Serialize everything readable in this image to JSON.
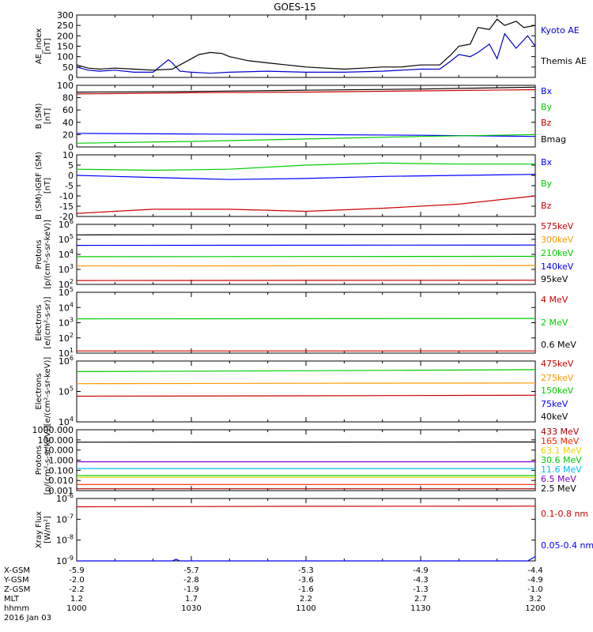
{
  "title": "GOES-15",
  "footer": {
    "row_labels": [
      "X-GSM",
      "Y-GSM",
      "Z-GSM",
      "MLT",
      "hhmm",
      "2016 Jan 03"
    ],
    "columns": [
      {
        "x_gsm": "-5.9",
        "y_gsm": "-2.0",
        "z_gsm": "-2.2",
        "mlt": "1.2",
        "hhmm": "1000"
      },
      {
        "x_gsm": "-5.7",
        "y_gsm": "-2.8",
        "z_gsm": "-1.9",
        "mlt": "1.7",
        "hhmm": "1030"
      },
      {
        "x_gsm": "-5.3",
        "y_gsm": "-3.6",
        "z_gsm": "-1.6",
        "mlt": "2.2",
        "hhmm": "1100"
      },
      {
        "x_gsm": "-4.9",
        "y_gsm": "-4.3",
        "z_gsm": "-1.3",
        "mlt": "2.7",
        "hhmm": "1130"
      },
      {
        "x_gsm": "-4.4",
        "y_gsm": "-4.9",
        "z_gsm": "-1.0",
        "mlt": "3.2",
        "hhmm": "1200"
      }
    ]
  },
  "colors": {
    "black": "#000000",
    "blue": "#0000ff",
    "green": "#00cc00",
    "red": "#cc0000",
    "orange": "#ff9900",
    "yellow": "#e6d600",
    "cyan": "#00bbee",
    "purple": "#7700cc",
    "darkred": "#aa0000",
    "brightred": "#ff2200",
    "magenta": "#dd00dd"
  },
  "chart_data": [
    {
      "type": "line",
      "ylabel": "AE_index\n[nT]",
      "scale": "linear",
      "ylim": [
        0,
        300
      ],
      "yticks": [
        "0",
        "50",
        "100",
        "150",
        "200",
        "250",
        "300"
      ],
      "x_time_range": [
        "1000",
        "1200"
      ],
      "series": [
        {
          "name": "Kyoto AE",
          "color": "#0000cc",
          "x": [
            0,
            3,
            6,
            10,
            15,
            20,
            24,
            25,
            27,
            30,
            35,
            40,
            50,
            60,
            70,
            80,
            90,
            95,
            98,
            100,
            103,
            105,
            108,
            110,
            112,
            115,
            118,
            120
          ],
          "values": [
            50,
            35,
            30,
            35,
            25,
            25,
            85,
            70,
            30,
            25,
            20,
            25,
            30,
            25,
            25,
            30,
            40,
            40,
            80,
            110,
            100,
            120,
            160,
            90,
            210,
            140,
            200,
            150
          ]
        },
        {
          "name": "Themis AE",
          "color": "#000000",
          "x": [
            0,
            3,
            6,
            10,
            15,
            20,
            25,
            30,
            32,
            35,
            38,
            40,
            45,
            50,
            55,
            60,
            65,
            70,
            75,
            80,
            85,
            90,
            95,
            98,
            100,
            103,
            105,
            108,
            110,
            112,
            115,
            117,
            120
          ],
          "values": [
            60,
            45,
            40,
            45,
            40,
            35,
            40,
            90,
            110,
            120,
            115,
            100,
            80,
            70,
            60,
            50,
            45,
            40,
            45,
            50,
            50,
            60,
            60,
            110,
            150,
            160,
            240,
            230,
            280,
            250,
            270,
            240,
            250
          ]
        }
      ]
    },
    {
      "type": "line",
      "ylabel": "B (SM)\n[nT]",
      "scale": "linear",
      "ylim": [
        0,
        100
      ],
      "yticks": [
        "0",
        "20",
        "40",
        "60",
        "80",
        "100"
      ],
      "x_time_range": [
        "1000",
        "1200"
      ],
      "series": [
        {
          "name": "Bx",
          "color": "#0000ff",
          "x": [
            0,
            30,
            60,
            90,
            120
          ],
          "values": [
            22,
            21,
            20,
            19,
            17
          ]
        },
        {
          "name": "By",
          "color": "#00cc00",
          "x": [
            0,
            30,
            60,
            90,
            120
          ],
          "values": [
            6,
            9,
            13,
            17,
            20
          ]
        },
        {
          "name": "Bz",
          "color": "#cc0000",
          "x": [
            0,
            30,
            60,
            90,
            120
          ],
          "values": [
            86,
            88,
            89,
            91,
            93
          ]
        },
        {
          "name": "Bmag",
          "color": "#000000",
          "x": [
            0,
            30,
            60,
            90,
            120
          ],
          "values": [
            89,
            90,
            92,
            94,
            97
          ]
        }
      ]
    },
    {
      "type": "line",
      "ylabel": "B (SM)-IGRF (SM)\n[nT]",
      "scale": "linear",
      "ylim": [
        -20,
        10
      ],
      "yticks": [
        "-20",
        "-15",
        "-10",
        "-5",
        "0",
        "5",
        "10"
      ],
      "x_time_range": [
        "1000",
        "1200"
      ],
      "series": [
        {
          "name": "Bx",
          "color": "#0000ff",
          "x": [
            0,
            20,
            40,
            60,
            80,
            100,
            120
          ],
          "values": [
            0,
            -1,
            -2,
            -1.5,
            -0.5,
            0,
            0.5
          ]
        },
        {
          "name": "By",
          "color": "#00cc00",
          "x": [
            0,
            20,
            40,
            60,
            80,
            100,
            120
          ],
          "values": [
            3,
            2.5,
            3,
            5,
            6,
            5.5,
            5.5
          ]
        },
        {
          "name": "Bz",
          "color": "#cc0000",
          "x": [
            0,
            20,
            40,
            60,
            80,
            100,
            120
          ],
          "values": [
            -18.5,
            -16.5,
            -16.5,
            -17.5,
            -16,
            -14,
            -10
          ]
        }
      ]
    },
    {
      "type": "line",
      "ylabel": "Protons\n[p/(cm²-s-sr-keV)]",
      "scale": "log",
      "ylim": [
        100,
        1000000
      ],
      "ytick_values": [
        100,
        1000,
        10000,
        100000,
        1000000
      ],
      "ytick_bases": [
        "10",
        "10",
        "10",
        "10",
        "10"
      ],
      "ytick_exps": [
        "2",
        "3",
        "4",
        "5",
        "6"
      ],
      "x_time_range": [
        "1000",
        "1200"
      ],
      "series": [
        {
          "name": "575keV",
          "color": "#cc0000",
          "x": [
            0,
            60,
            120
          ],
          "values": [
            180,
            185,
            190
          ]
        },
        {
          "name": "300keV",
          "color": "#ff9900",
          "x": [
            0,
            60,
            120
          ],
          "values": [
            1700,
            1750,
            1800
          ]
        },
        {
          "name": "210keV",
          "color": "#00cc00",
          "x": [
            0,
            60,
            120
          ],
          "values": [
            7000,
            7200,
            7400
          ]
        },
        {
          "name": "140keV",
          "color": "#0000ff",
          "x": [
            0,
            60,
            120
          ],
          "values": [
            40000,
            41000,
            42000
          ]
        },
        {
          "name": "95keV",
          "color": "#000000",
          "x": [
            0,
            60,
            120
          ],
          "values": [
            200000,
            210000,
            220000
          ]
        }
      ]
    },
    {
      "type": "line",
      "ylabel": "Electrons\n[e/(cm²-s-sr)]",
      "scale": "log",
      "ylim": [
        10,
        100000
      ],
      "ytick_values": [
        10,
        100,
        1000,
        10000,
        100000
      ],
      "ytick_bases": [
        "10",
        "10",
        "10",
        "10",
        "10"
      ],
      "ytick_exps": [
        "1",
        "2",
        "3",
        "4",
        "5"
      ],
      "x_time_range": [
        "1000",
        "1200"
      ],
      "series": [
        {
          "name": "4 MeV",
          "color": "#cc0000",
          "x": [
            0,
            60,
            120
          ],
          "values": [
            14,
            14,
            14
          ]
        },
        {
          "name": "2 MeV",
          "color": "#00cc00",
          "x": [
            0,
            60,
            120
          ],
          "values": [
            1800,
            1850,
            1900
          ]
        },
        {
          "name": "0.6 MeV",
          "color": "#000000",
          "x": [],
          "values": []
        }
      ]
    },
    {
      "type": "line",
      "ylabel": "Electrons\n[e/(cm²-s-sr-keV)]",
      "scale": "log",
      "ylim": [
        10000,
        1000000
      ],
      "ytick_values": [
        10000,
        100000,
        1000000
      ],
      "ytick_bases": [
        "10",
        "10",
        "10"
      ],
      "ytick_exps": [
        "4",
        "5",
        "6"
      ],
      "x_time_range": [
        "1000",
        "1200"
      ],
      "series": [
        {
          "name": "475keV",
          "color": "#cc0000",
          "x": [
            0,
            60,
            120
          ],
          "values": [
            70000,
            72000,
            75000
          ]
        },
        {
          "name": "275keV",
          "color": "#ff9900",
          "x": [
            0,
            60,
            120
          ],
          "values": [
            180000,
            185000,
            190000
          ]
        },
        {
          "name": "150keV",
          "color": "#00cc00",
          "x": [
            0,
            60,
            120
          ],
          "values": [
            450000,
            480000,
            520000
          ]
        },
        {
          "name": "75keV",
          "color": "#0000ff",
          "x": [],
          "values": []
        },
        {
          "name": "40keV",
          "color": "#000000",
          "x": [],
          "values": []
        }
      ]
    },
    {
      "type": "line",
      "ylabel": "Protons\n[p/(cm²-s-sr-keV)]",
      "scale": "log",
      "ylim": [
        0.001,
        1000
      ],
      "ytick_values": [
        0.001,
        0.01,
        0.1,
        1,
        10,
        100,
        1000
      ],
      "ytick_labels": [
        "0.001",
        "0.010",
        "0.100",
        "1.000",
        "10.000",
        "100.000",
        "1000.000"
      ],
      "x_time_range": [
        "1000",
        "1200"
      ],
      "series": [
        {
          "name": "433 MeV",
          "color": "#aa0000",
          "x": [
            0,
            120
          ],
          "values": [
            0.0015,
            0.0015
          ]
        },
        {
          "name": "165 MeV",
          "color": "#ff2200",
          "x": [
            0,
            120
          ],
          "values": [
            0.004,
            0.004
          ]
        },
        {
          "name": "63.1 MeV",
          "color": "#e6d600",
          "x": [
            0,
            120
          ],
          "values": [
            0.02,
            0.02
          ]
        },
        {
          "name": "30.6 MeV",
          "color": "#00cc00",
          "x": [
            0,
            120
          ],
          "values": [
            0.03,
            0.03
          ]
        },
        {
          "name": "11.6 MeV",
          "color": "#00bbee",
          "x": [
            0,
            120
          ],
          "values": [
            0.15,
            0.15
          ]
        },
        {
          "name": "6.5 MeV",
          "color": "#7700cc",
          "x": [
            0,
            120
          ],
          "values": [
            0.7,
            0.7
          ]
        },
        {
          "name": "2.5 MeV",
          "color": "#000000",
          "x": [
            0,
            120
          ],
          "values": [
            60,
            62
          ]
        }
      ]
    },
    {
      "type": "line",
      "ylabel": "Xray Flux\n[W/m²]",
      "scale": "log",
      "ylim": [
        1e-09,
        1e-06
      ],
      "ytick_values": [
        1e-09,
        1e-08,
        1e-07,
        1e-06
      ],
      "ytick_bases": [
        "10",
        "10",
        "10",
        "10"
      ],
      "ytick_exps": [
        "-9",
        "-8",
        "-7",
        "-6"
      ],
      "x_time_range": [
        "1000",
        "1200"
      ],
      "series": [
        {
          "name": "0.1-0.8 nm",
          "color": "#cc0000",
          "x": [
            0,
            60,
            120
          ],
          "values": [
            4e-07,
            4.2e-07,
            4.3e-07
          ]
        },
        {
          "name": "0.05-0.4 nm",
          "color": "#0000ff",
          "x": [
            0,
            25,
            26,
            27,
            60,
            118,
            120
          ],
          "values": [
            1e-09,
            1e-09,
            1.2e-09,
            1e-09,
            1e-09,
            1e-09,
            1.6e-09
          ]
        }
      ]
    }
  ]
}
